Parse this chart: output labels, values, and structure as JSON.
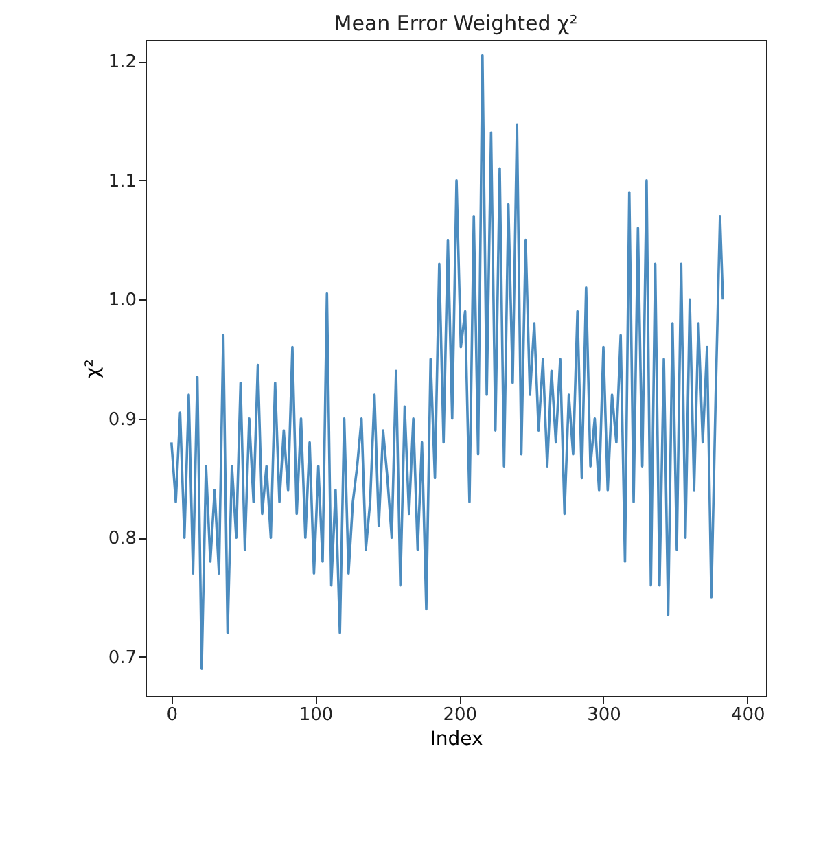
{
  "chart_data": {
    "type": "line",
    "title": "Mean Error Weighted χ²",
    "xlabel": "Index",
    "ylabel": "χ²",
    "x": [
      0,
      3,
      6,
      9,
      12,
      15,
      18,
      21,
      24,
      27,
      30,
      33,
      36,
      39,
      42,
      45,
      48,
      51,
      54,
      57,
      60,
      63,
      66,
      69,
      72,
      75,
      78,
      81,
      84,
      87,
      90,
      93,
      96,
      99,
      102,
      105,
      108,
      111,
      114,
      117,
      120,
      123,
      126,
      129,
      132,
      135,
      138,
      141,
      144,
      147,
      150,
      153,
      156,
      159,
      162,
      165,
      168,
      171,
      174,
      177,
      180,
      183,
      186,
      189,
      192,
      195,
      198,
      201,
      204,
      207,
      210,
      213,
      216,
      219,
      222,
      225,
      228,
      231,
      234,
      237,
      240,
      243,
      246,
      249,
      252,
      255,
      258,
      261,
      264,
      267,
      270,
      273,
      276,
      279,
      282,
      285,
      288,
      291,
      294,
      297,
      300,
      303,
      306,
      309,
      312,
      315,
      318,
      321,
      324,
      327,
      330,
      333,
      336,
      339,
      342,
      345,
      348,
      351,
      354,
      357,
      360,
      363,
      366,
      369,
      372,
      375,
      378,
      381,
      383
    ],
    "series": [
      {
        "color": "#4c8cbf",
        "values": [
          0.88,
          0.83,
          0.905,
          0.8,
          0.92,
          0.77,
          0.935,
          0.69,
          0.86,
          0.78,
          0.84,
          0.77,
          0.97,
          0.72,
          0.86,
          0.8,
          0.93,
          0.79,
          0.9,
          0.83,
          0.945,
          0.82,
          0.86,
          0.8,
          0.93,
          0.83,
          0.89,
          0.84,
          0.96,
          0.82,
          0.9,
          0.8,
          0.88,
          0.77,
          0.86,
          0.78,
          1.005,
          0.76,
          0.84,
          0.72,
          0.9,
          0.77,
          0.83,
          0.86,
          0.9,
          0.79,
          0.83,
          0.92,
          0.81,
          0.89,
          0.85,
          0.8,
          0.94,
          0.76,
          0.91,
          0.82,
          0.9,
          0.79,
          0.88,
          0.74,
          0.95,
          0.85,
          1.03,
          0.88,
          1.05,
          0.9,
          1.1,
          0.96,
          0.99,
          0.83,
          1.07,
          0.87,
          1.205,
          0.92,
          1.14,
          0.89,
          1.11,
          0.86,
          1.08,
          0.93,
          1.147,
          0.87,
          1.05,
          0.92,
          0.98,
          0.89,
          0.95,
          0.86,
          0.94,
          0.88,
          0.95,
          0.82,
          0.92,
          0.87,
          0.99,
          0.85,
          1.01,
          0.86,
          0.9,
          0.84,
          0.96,
          0.84,
          0.92,
          0.88,
          0.97,
          0.78,
          1.09,
          0.83,
          1.06,
          0.86,
          1.1,
          0.76,
          1.03,
          0.76,
          0.95,
          0.735,
          0.98,
          0.79,
          1.03,
          0.8,
          1.0,
          0.84,
          0.98,
          0.88,
          0.96,
          0.75,
          0.92,
          1.07,
          1.0
        ]
      }
    ],
    "xlim": [
      -18,
      413
    ],
    "ylim": [
      0.667,
      1.218
    ],
    "xticks": [
      0,
      100,
      200,
      300,
      400
    ],
    "yticks": [
      0.7,
      0.8,
      0.9,
      {
        "value": 1,
        "label": "1.0"
      },
      1.1,
      1.2
    ],
    "grid": false,
    "marker": "none",
    "line_style": "solid"
  }
}
